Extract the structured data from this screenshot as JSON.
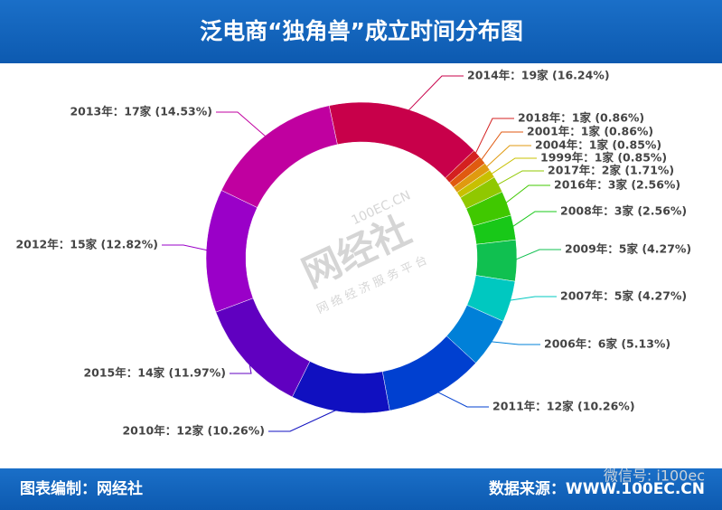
{
  "chart_data": {
    "type": "donut",
    "title": "泛电商“独角兽”成立时间分布图",
    "values": [
      19,
      1,
      1,
      1,
      1,
      2,
      3,
      3,
      5,
      5,
      6,
      12,
      12,
      14,
      15,
      17
    ],
    "value_labels": [
      "2014年：19家 (16.24%)",
      "2018年：1家 (0.86%)",
      "2001年：1家 (0.86%)",
      "2004年：1家 (0.85%)",
      "1999年：1家 (0.85%)",
      "2017年：2家 (1.71%)",
      "2016年：3家 (2.56%)",
      "2008年：3家 (2.56%)",
      "2009年：5家 (4.27%)",
      "2007年：5家 (4.27%)",
      "2006年：6家 (5.13%)",
      "2011年：12家 (10.26%)",
      "2010年：12家 (10.26%)",
      "2015年：14家 (11.97%)",
      "2012年：15家 (12.82%)",
      "2013年：17家 (14.53%)"
    ],
    "colors": [
      "#c8004a",
      "#d42020",
      "#e05a10",
      "#e09a10",
      "#c8c000",
      "#90c800",
      "#40c800",
      "#18c818",
      "#10c050",
      "#00c8c0",
      "#0080d8",
      "#0040d0",
      "#1010c0",
      "#6000c0",
      "#9a00c8",
      "#c000a0"
    ]
  },
  "footer": {
    "left": "图表编制：网经社",
    "right": "数据来源：WWW.100EC.CN"
  },
  "watermark": {
    "logo": "网经社",
    "site": "100EC.CN",
    "slogan": "网 络 经 济 服 务 平 台",
    "wechat": "微信号: i100ec"
  }
}
